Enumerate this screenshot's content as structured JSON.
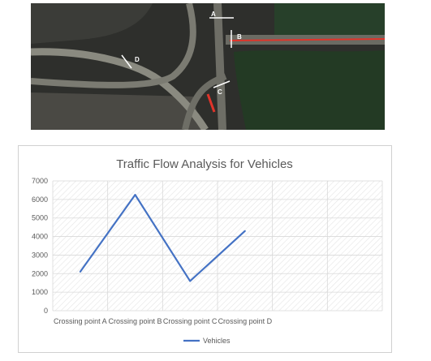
{
  "aerial_image": {
    "point_labels": [
      "A",
      "B",
      "C",
      "D"
    ],
    "colors": {
      "ground": "#2b2c2a",
      "road": "#7a7a72",
      "trees": "#1f3a22",
      "marker": "#e0342a"
    }
  },
  "chart_data": {
    "type": "line",
    "title": "Traffic Flow Analysis for Vehicles",
    "categories": [
      "Crossing point A",
      "Crossing point B",
      "Crossing point C",
      "Crossing point D"
    ],
    "series": [
      {
        "name": "Vehicles",
        "values": [
          2100,
          6250,
          1600,
          4300
        ],
        "color": "#4472c4"
      }
    ],
    "ylim": [
      0,
      7000
    ],
    "yticks": [
      0,
      1000,
      2000,
      3000,
      4000,
      5000,
      6000,
      7000
    ],
    "category_slots": 6,
    "legend_position": "bottom",
    "grid": true,
    "plot_background": "hatched"
  }
}
